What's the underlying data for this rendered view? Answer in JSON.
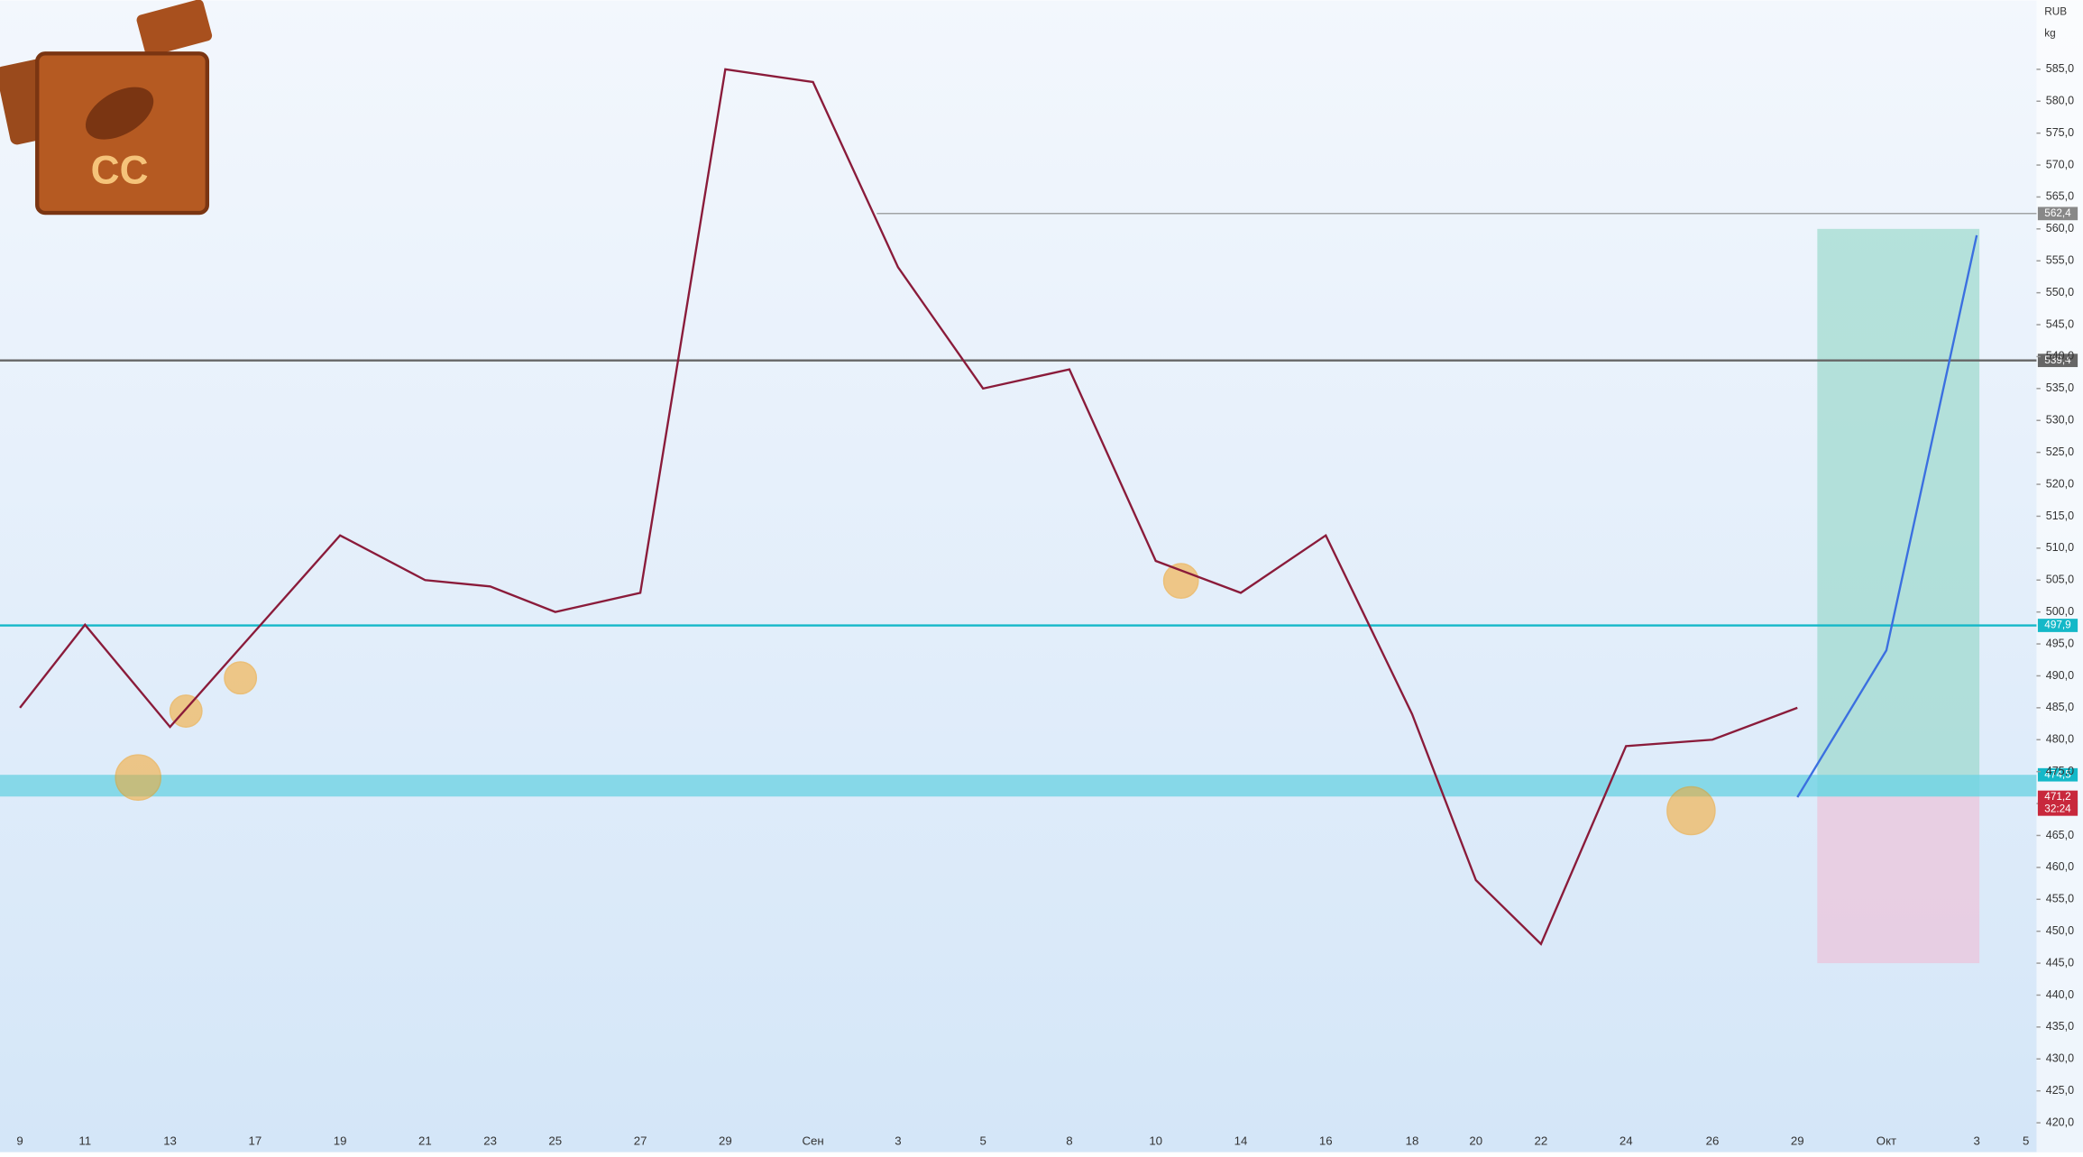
{
  "chart_data": {
    "type": "line",
    "currency": "RUB",
    "unit": "kg",
    "logo_text": "CC",
    "categories": [
      "9",
      "11",
      "13",
      "17",
      "19",
      "21",
      "23",
      "25",
      "27",
      "29",
      "Сен",
      "3",
      "5",
      "8",
      "10",
      "14",
      "16",
      "18",
      "20",
      "22",
      "24",
      "26",
      "29",
      "Окт",
      "3",
      "5"
    ],
    "series": [
      {
        "color": "#8a1b3a",
        "values": [
          485,
          498,
          482,
          497,
          512,
          505,
          504,
          500,
          503,
          585,
          583,
          554,
          535,
          538,
          508,
          503,
          512,
          484,
          458,
          448,
          479,
          480,
          485,
          null,
          null,
          null
        ]
      },
      {
        "color": "#3b6fe0",
        "values": [
          null,
          null,
          null,
          null,
          null,
          null,
          null,
          null,
          null,
          null,
          null,
          null,
          null,
          null,
          null,
          null,
          null,
          null,
          null,
          null,
          null,
          null,
          471,
          494,
          559,
          null
        ]
      }
    ],
    "ylim": [
      415.4,
      595.8
    ],
    "yticks": [
      {
        "value": 420,
        "label": "420,0"
      },
      {
        "value": 425,
        "label": "425,0"
      },
      {
        "value": 430,
        "label": "430,0"
      },
      {
        "value": 435,
        "label": "435,0"
      },
      {
        "value": 440,
        "label": "440,0"
      },
      {
        "value": 445,
        "label": "445,0"
      },
      {
        "value": 450,
        "label": "450,0"
      },
      {
        "value": 455,
        "label": "455,0"
      },
      {
        "value": 460,
        "label": "460,0"
      },
      {
        "value": 465,
        "label": "465,0"
      },
      {
        "value": 470,
        "label": "470,0"
      },
      {
        "value": 475,
        "label": "475,0"
      },
      {
        "value": 480,
        "label": "480,0"
      },
      {
        "value": 485,
        "label": "485,0"
      },
      {
        "value": 490,
        "label": "490,0"
      },
      {
        "value": 495,
        "label": "495,0"
      },
      {
        "value": 500,
        "label": "500,0"
      },
      {
        "value": 505,
        "label": "505,0"
      },
      {
        "value": 510,
        "label": "510,0"
      },
      {
        "value": 515,
        "label": "515,0"
      },
      {
        "value": 520,
        "label": "520,0"
      },
      {
        "value": 525,
        "label": "525,0"
      },
      {
        "value": 530,
        "label": "530,0"
      },
      {
        "value": 535,
        "label": "535,0"
      },
      {
        "value": 540,
        "label": "540,0"
      },
      {
        "value": 545,
        "label": "545,0"
      },
      {
        "value": 550,
        "label": "550,0"
      },
      {
        "value": 555,
        "label": "555,0"
      },
      {
        "value": 560,
        "label": "560,0"
      },
      {
        "value": 565,
        "label": "565,0"
      },
      {
        "value": 570,
        "label": "570,0"
      },
      {
        "value": 575,
        "label": "575,0"
      },
      {
        "value": 580,
        "label": "580,0"
      },
      {
        "value": 585,
        "label": "585,0"
      }
    ],
    "levels": [
      {
        "value": 562.4,
        "label": "562,4",
        "color": "#888888"
      },
      {
        "value": 539.4,
        "label": "539,4",
        "color": "#666666"
      },
      {
        "value": 497.9,
        "label": "497,9",
        "color": "#14b8c8"
      },
      {
        "value": 474.5,
        "label": "474,5",
        "color": "#14b8c8"
      },
      {
        "value": 471.1,
        "label": "471,1",
        "color": "#14b8c8"
      }
    ],
    "last_price": {
      "value": 471.2,
      "label": "471,2",
      "countdown": "32:24",
      "color": "#c8283c"
    },
    "position": {
      "entry": 471.1,
      "target": 560,
      "stop": 445
    }
  }
}
